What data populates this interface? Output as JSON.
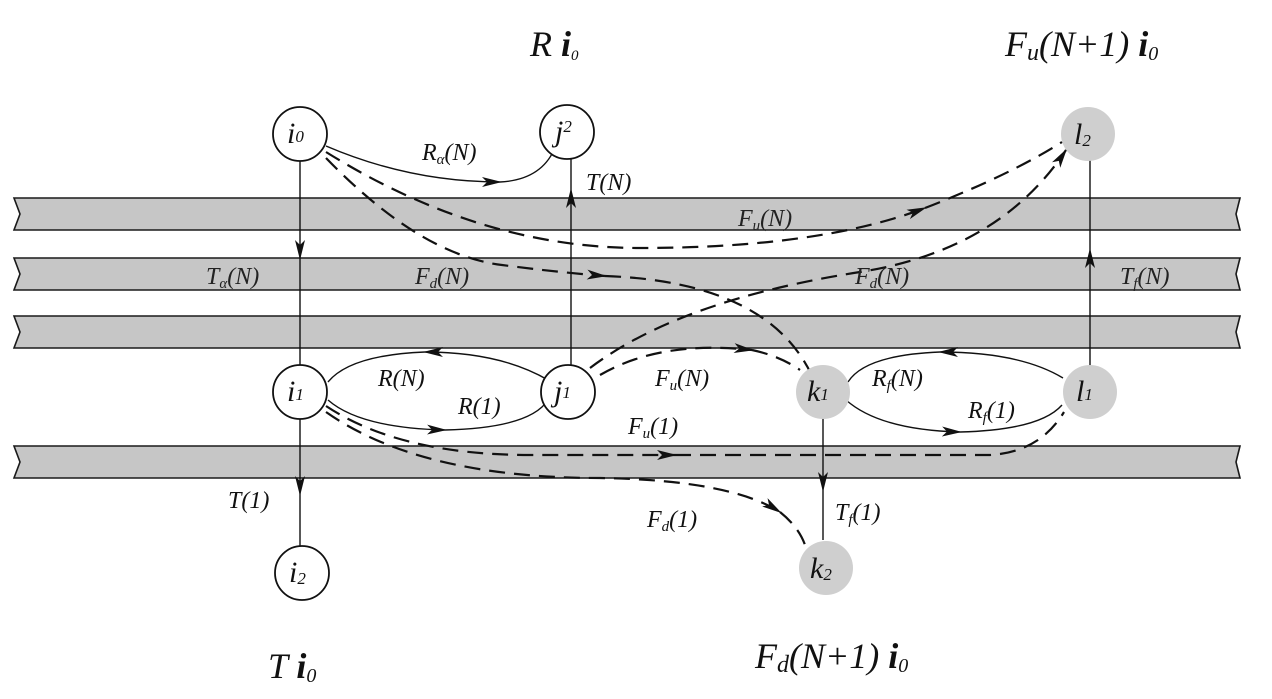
{
  "headings": {
    "reflection": {
      "main": "R ",
      "var": "i",
      "sub": "0"
    },
    "forward_up": {
      "main": "F",
      "sub1": "u",
      "mid": "(N+1) ",
      "var": "i",
      "sub": "0"
    },
    "transmission": {
      "main": "T ",
      "var": "i",
      "sub": "0"
    },
    "forward_down": {
      "main": "F",
      "sub1": "d",
      "mid": "(N+1) ",
      "var": "i",
      "sub": "0"
    }
  },
  "nodes": [
    {
      "id": "i0",
      "letter": "i",
      "sub": "0",
      "style": "outlined"
    },
    {
      "id": "j2",
      "letter": "j",
      "sub": "2",
      "style": "outlined"
    },
    {
      "id": "l2",
      "letter": "l",
      "sub": "2",
      "style": "shaded"
    },
    {
      "id": "i1",
      "letter": "i",
      "sub": "1",
      "style": "outlined"
    },
    {
      "id": "j1",
      "letter": "j",
      "sub": "1",
      "style": "outlined"
    },
    {
      "id": "k1",
      "letter": "k",
      "sub": "1",
      "style": "shaded"
    },
    {
      "id": "l1",
      "letter": "l",
      "sub": "1",
      "style": "shaded"
    },
    {
      "id": "i2",
      "letter": "i",
      "sub": "2",
      "style": "outlined"
    },
    {
      "id": "k2",
      "letter": "k",
      "sub": "2",
      "style": "shaded"
    }
  ],
  "labels": {
    "r_alpha_n": {
      "main": "R",
      "sub": "α",
      "rest": "(N)"
    },
    "t_n": {
      "main": "T(N)",
      "sub": "",
      "rest": ""
    },
    "fu_n_top": {
      "main": "F",
      "sub": "u",
      "rest": "(N)"
    },
    "t_alpha_n": {
      "main": "T",
      "sub": "α",
      "rest": "(N)"
    },
    "fd_n_left": {
      "main": "F",
      "sub": "d",
      "rest": "(N)"
    },
    "fd_n_right": {
      "main": "F",
      "sub": "d",
      "rest": "(N)"
    },
    "tf_n": {
      "main": "T",
      "sub": "f",
      "rest": "(N)"
    },
    "r_n": {
      "main": "R(N)",
      "sub": "",
      "rest": ""
    },
    "r_1": {
      "main": "R(1)",
      "sub": "",
      "rest": ""
    },
    "fu_n_mid": {
      "main": "F",
      "sub": "u",
      "rest": "(N)"
    },
    "rf_n": {
      "main": "R",
      "sub": "f",
      "rest": "(N)"
    },
    "rf_1": {
      "main": "R",
      "sub": "f",
      "rest": "(1)"
    },
    "fu_1": {
      "main": "F",
      "sub": "u",
      "rest": "(1)"
    },
    "t_1": {
      "main": "T(1)",
      "sub": "",
      "rest": ""
    },
    "fd_1": {
      "main": "F",
      "sub": "d",
      "rest": "(1)"
    },
    "tf_1": {
      "main": "T",
      "sub": "f",
      "rest": "(1)"
    }
  }
}
